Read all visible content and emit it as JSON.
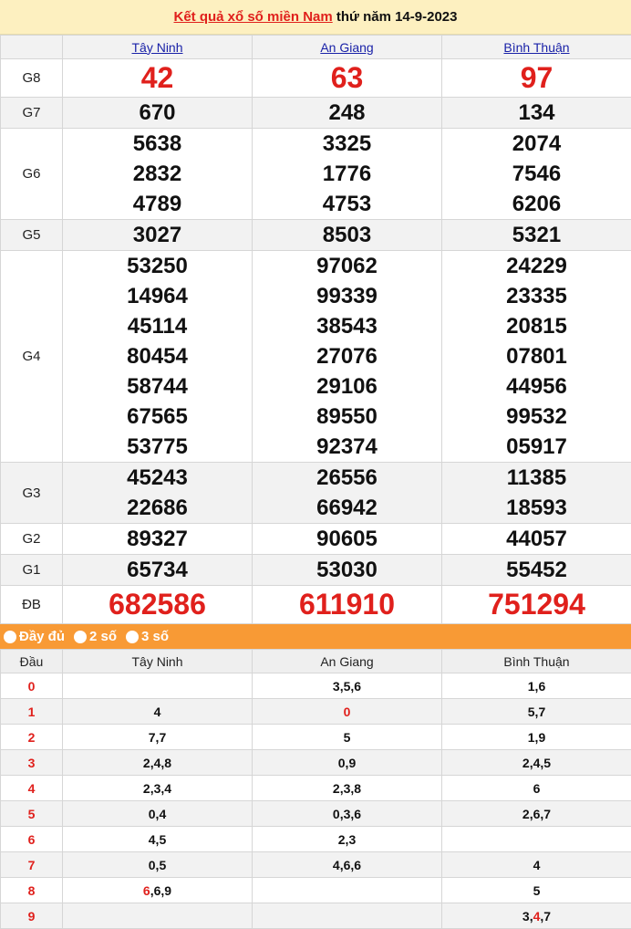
{
  "title": {
    "link": "Kết quả xổ số miền Nam",
    "suffix": " thứ năm 14-9-2023"
  },
  "provinces": [
    "Tây Ninh",
    "An Giang",
    "Bình Thuận"
  ],
  "prizes": [
    {
      "label": "G8",
      "big": true,
      "values": [
        [
          "42"
        ],
        [
          "63"
        ],
        [
          "97"
        ]
      ]
    },
    {
      "label": "G7",
      "values": [
        [
          "670"
        ],
        [
          "248"
        ],
        [
          "134"
        ]
      ]
    },
    {
      "label": "G6",
      "values": [
        [
          "5638",
          "2832",
          "4789"
        ],
        [
          "3325",
          "1776",
          "4753"
        ],
        [
          "2074",
          "7546",
          "6206"
        ]
      ]
    },
    {
      "label": "G5",
      "values": [
        [
          "3027"
        ],
        [
          "8503"
        ],
        [
          "5321"
        ]
      ]
    },
    {
      "label": "G4",
      "values": [
        [
          "53250",
          "14964",
          "45114",
          "80454",
          "58744",
          "67565",
          "53775"
        ],
        [
          "97062",
          "99339",
          "38543",
          "27076",
          "29106",
          "89550",
          "92374"
        ],
        [
          "24229",
          "23335",
          "20815",
          "07801",
          "44956",
          "99532",
          "05917"
        ]
      ]
    },
    {
      "label": "G3",
      "values": [
        [
          "45243",
          "22686"
        ],
        [
          "26556",
          "66942"
        ],
        [
          "11385",
          "18593"
        ]
      ]
    },
    {
      "label": "G2",
      "values": [
        [
          "89327"
        ],
        [
          "90605"
        ],
        [
          "44057"
        ]
      ]
    },
    {
      "label": "G1",
      "values": [
        [
          "65734"
        ],
        [
          "53030"
        ],
        [
          "55452"
        ]
      ]
    },
    {
      "label": "ĐB",
      "big": true,
      "values": [
        [
          "682586"
        ],
        [
          "611910"
        ],
        [
          "751294"
        ]
      ]
    }
  ],
  "options": [
    "Đầy đủ",
    "2 số",
    "3 số"
  ],
  "loto": {
    "header": "Đầu",
    "rows": [
      {
        "dau": "0",
        "cells": [
          [],
          [
            {
              "v": "3,5,6"
            }
          ],
          [
            {
              "v": "1,6"
            }
          ]
        ]
      },
      {
        "dau": "1",
        "cells": [
          [
            {
              "v": "4"
            }
          ],
          [
            {
              "v": "0",
              "hl": true
            }
          ],
          [
            {
              "v": "5,7"
            }
          ]
        ]
      },
      {
        "dau": "2",
        "cells": [
          [
            {
              "v": "7,7"
            }
          ],
          [
            {
              "v": "5"
            }
          ],
          [
            {
              "v": "1,9"
            }
          ]
        ]
      },
      {
        "dau": "3",
        "cells": [
          [
            {
              "v": "2,4,8"
            }
          ],
          [
            {
              "v": "0,9"
            }
          ],
          [
            {
              "v": "2,4,5"
            }
          ]
        ]
      },
      {
        "dau": "4",
        "cells": [
          [
            {
              "v": "2,3,4"
            }
          ],
          [
            {
              "v": "2,3,8"
            }
          ],
          [
            {
              "v": "6"
            }
          ]
        ]
      },
      {
        "dau": "5",
        "cells": [
          [
            {
              "v": "0,4"
            }
          ],
          [
            {
              "v": "0,3,6"
            }
          ],
          [
            {
              "v": "2,6,7"
            }
          ]
        ]
      },
      {
        "dau": "6",
        "cells": [
          [
            {
              "v": "4,5"
            }
          ],
          [
            {
              "v": "2,3"
            }
          ],
          []
        ]
      },
      {
        "dau": "7",
        "cells": [
          [
            {
              "v": "0,5"
            }
          ],
          [
            {
              "v": "4,6,6"
            }
          ],
          [
            {
              "v": "4"
            }
          ]
        ]
      },
      {
        "dau": "8",
        "cells": [
          [
            {
              "v": "6",
              "hl": true
            },
            {
              "v": ",6,9"
            }
          ],
          [],
          [
            {
              "v": "5"
            }
          ]
        ]
      },
      {
        "dau": "9",
        "cells": [
          [],
          [],
          [
            {
              "v": "3,"
            },
            {
              "v": "4",
              "hl": true
            },
            {
              "v": ",7"
            }
          ]
        ]
      }
    ]
  },
  "colors": {
    "accent_red": "#e0201c",
    "bar_orange": "#f89a35",
    "title_bg": "#fdf0c0",
    "link_blue": "#1a22a8"
  }
}
